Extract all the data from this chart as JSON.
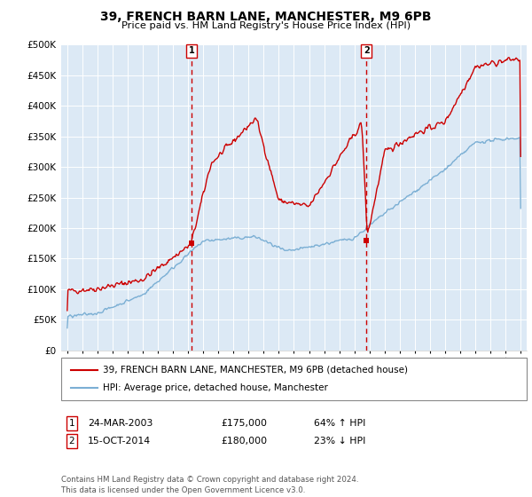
{
  "title": "39, FRENCH BARN LANE, MANCHESTER, M9 6PB",
  "subtitle": "Price paid vs. HM Land Registry's House Price Index (HPI)",
  "fig_bg_color": "#ffffff",
  "plot_bg_color": "#dce9f5",
  "red_line_label": "39, FRENCH BARN LANE, MANCHESTER, M9 6PB (detached house)",
  "blue_line_label": "HPI: Average price, detached house, Manchester",
  "transaction1_date": "24-MAR-2003",
  "transaction1_price": "£175,000",
  "transaction1_hpi": "64% ↑ HPI",
  "transaction2_date": "15-OCT-2014",
  "transaction2_price": "£180,000",
  "transaction2_hpi": "23% ↓ HPI",
  "vline1_year": 2003.22,
  "vline2_year": 2014.79,
  "trans1_price_val": 175000,
  "trans2_price_val": 180000,
  "ylim_max": 500000,
  "ylim_min": 0,
  "xlim_min": 1994.6,
  "xlim_max": 2025.4,
  "footer": "Contains HM Land Registry data © Crown copyright and database right 2024.\nThis data is licensed under the Open Government Licence v3.0."
}
